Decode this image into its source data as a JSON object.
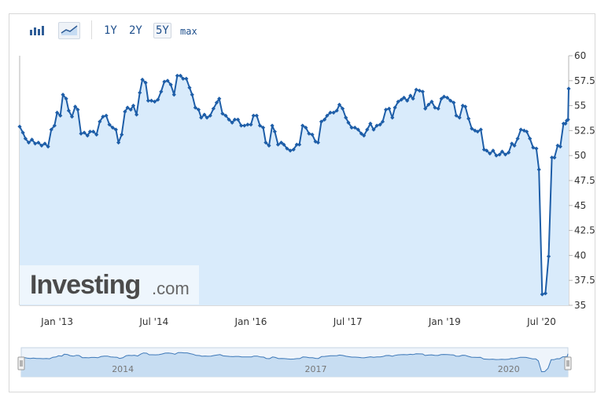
{
  "toolbar": {
    "chart_types": [
      {
        "name": "bar-chart",
        "icon": "bar-chart-icon"
      },
      {
        "name": "line-chart",
        "icon": "line-chart-icon",
        "active": true
      }
    ],
    "ranges": [
      "1Y",
      "2Y",
      "5Y",
      "max"
    ],
    "active_range": "5Y"
  },
  "watermark": {
    "brand": "Investing",
    "tld": ".com"
  },
  "colors": {
    "line": "#1e5ea8",
    "fill": "#d9ebfb",
    "marker": "#1e5ea8",
    "axis": "#b5b5b5"
  },
  "chart_data": {
    "type": "area",
    "y_axis_position": "right",
    "ylim": [
      35,
      60
    ],
    "yticks": [
      "60",
      "57.5",
      "55",
      "52.5",
      "50",
      "47.5",
      "45",
      "42.5",
      "40",
      "37.5",
      "35"
    ],
    "xlim": [
      2012.42,
      2020.92
    ],
    "xticks": [
      {
        "label": "Jan '13",
        "x": 2013.0
      },
      {
        "label": "Jul '14",
        "x": 2014.5
      },
      {
        "label": "Jan '16",
        "x": 2016.0
      },
      {
        "label": "Jul '17",
        "x": 2017.5
      },
      {
        "label": "Jan '19",
        "x": 2019.0
      },
      {
        "label": "Jul '20",
        "x": 2020.5
      }
    ],
    "navigator_ticks": [
      {
        "label": "2014",
        "x": 2014.0
      },
      {
        "label": "2017",
        "x": 2017.0
      },
      {
        "label": "2020",
        "x": 2020.0
      }
    ],
    "series": [
      {
        "points": [
          [
            2012.42,
            52.9
          ],
          [
            2012.47,
            52.3
          ],
          [
            2012.51,
            51.7
          ],
          [
            2012.56,
            51.3
          ],
          [
            2012.61,
            51.6
          ],
          [
            2012.66,
            51.2
          ],
          [
            2012.71,
            51.3
          ],
          [
            2012.76,
            51.0
          ],
          [
            2012.81,
            51.2
          ],
          [
            2012.86,
            50.9
          ],
          [
            2012.91,
            52.6
          ],
          [
            2012.96,
            53.0
          ],
          [
            2013.0,
            54.3
          ],
          [
            2013.05,
            54.0
          ],
          [
            2013.09,
            56.1
          ],
          [
            2013.14,
            55.7
          ],
          [
            2013.18,
            54.5
          ],
          [
            2013.23,
            53.9
          ],
          [
            2013.28,
            54.9
          ],
          [
            2013.32,
            54.6
          ],
          [
            2013.37,
            52.2
          ],
          [
            2013.42,
            52.3
          ],
          [
            2013.47,
            52.0
          ],
          [
            2013.51,
            52.4
          ],
          [
            2013.56,
            52.4
          ],
          [
            2013.61,
            52.1
          ],
          [
            2013.66,
            53.4
          ],
          [
            2013.71,
            53.9
          ],
          [
            2013.76,
            54.0
          ],
          [
            2013.81,
            53.1
          ],
          [
            2013.86,
            52.8
          ],
          [
            2013.91,
            52.6
          ],
          [
            2013.95,
            51.3
          ],
          [
            2014.0,
            52.1
          ],
          [
            2014.05,
            54.4
          ],
          [
            2014.09,
            54.8
          ],
          [
            2014.14,
            54.6
          ],
          [
            2014.18,
            55.0
          ],
          [
            2014.23,
            54.1
          ],
          [
            2014.28,
            56.3
          ],
          [
            2014.32,
            57.6
          ],
          [
            2014.37,
            57.3
          ],
          [
            2014.41,
            55.5
          ],
          [
            2014.46,
            55.5
          ],
          [
            2014.51,
            55.4
          ],
          [
            2014.56,
            55.6
          ],
          [
            2014.61,
            56.4
          ],
          [
            2014.66,
            57.4
          ],
          [
            2014.71,
            57.5
          ],
          [
            2014.76,
            57.1
          ],
          [
            2014.81,
            56.1
          ],
          [
            2014.86,
            58.0
          ],
          [
            2014.91,
            58.0
          ],
          [
            2014.95,
            57.7
          ],
          [
            2015.0,
            57.7
          ],
          [
            2015.05,
            56.8
          ],
          [
            2015.09,
            56.1
          ],
          [
            2015.14,
            54.8
          ],
          [
            2015.19,
            54.6
          ],
          [
            2015.23,
            53.8
          ],
          [
            2015.28,
            54.1
          ],
          [
            2015.32,
            53.8
          ],
          [
            2015.37,
            54.0
          ],
          [
            2015.42,
            54.7
          ],
          [
            2015.47,
            55.3
          ],
          [
            2015.51,
            55.7
          ],
          [
            2015.56,
            54.2
          ],
          [
            2015.61,
            54.0
          ],
          [
            2015.66,
            53.6
          ],
          [
            2015.71,
            53.3
          ],
          [
            2015.75,
            53.6
          ],
          [
            2015.8,
            53.6
          ],
          [
            2015.85,
            53.0
          ],
          [
            2015.9,
            53.0
          ],
          [
            2015.95,
            53.1
          ],
          [
            2016.0,
            53.1
          ],
          [
            2016.04,
            54.0
          ],
          [
            2016.09,
            54.0
          ],
          [
            2016.14,
            53.0
          ],
          [
            2016.19,
            52.8
          ],
          [
            2016.23,
            51.3
          ],
          [
            2016.28,
            51.0
          ],
          [
            2016.33,
            53.0
          ],
          [
            2016.37,
            52.4
          ],
          [
            2016.42,
            51.1
          ],
          [
            2016.47,
            51.3
          ],
          [
            2016.51,
            51.1
          ],
          [
            2016.56,
            50.7
          ],
          [
            2016.61,
            50.5
          ],
          [
            2016.66,
            50.6
          ],
          [
            2016.71,
            51.1
          ],
          [
            2016.75,
            51.1
          ],
          [
            2016.8,
            53.0
          ],
          [
            2016.85,
            52.8
          ],
          [
            2016.9,
            52.2
          ],
          [
            2016.95,
            52.1
          ],
          [
            2017.0,
            51.4
          ],
          [
            2017.04,
            51.3
          ],
          [
            2017.09,
            53.4
          ],
          [
            2017.14,
            53.6
          ],
          [
            2017.18,
            54.0
          ],
          [
            2017.23,
            54.3
          ],
          [
            2017.28,
            54.3
          ],
          [
            2017.33,
            54.5
          ],
          [
            2017.37,
            55.1
          ],
          [
            2017.42,
            54.7
          ],
          [
            2017.47,
            53.8
          ],
          [
            2017.51,
            53.3
          ],
          [
            2017.56,
            52.8
          ],
          [
            2017.61,
            52.8
          ],
          [
            2017.66,
            52.6
          ],
          [
            2017.71,
            52.2
          ],
          [
            2017.75,
            52.0
          ],
          [
            2017.8,
            52.6
          ],
          [
            2017.85,
            53.2
          ],
          [
            2017.9,
            52.6
          ],
          [
            2017.95,
            53.0
          ],
          [
            2018.0,
            53.1
          ],
          [
            2018.04,
            53.4
          ],
          [
            2018.09,
            54.6
          ],
          [
            2018.14,
            54.7
          ],
          [
            2018.19,
            53.8
          ],
          [
            2018.23,
            54.8
          ],
          [
            2018.28,
            55.4
          ],
          [
            2018.33,
            55.6
          ],
          [
            2018.37,
            55.8
          ],
          [
            2018.42,
            55.5
          ],
          [
            2018.47,
            56.0
          ],
          [
            2018.51,
            55.7
          ],
          [
            2018.56,
            56.6
          ],
          [
            2018.61,
            56.5
          ],
          [
            2018.66,
            56.4
          ],
          [
            2018.7,
            54.7
          ],
          [
            2018.75,
            55.1
          ],
          [
            2018.8,
            55.4
          ],
          [
            2018.85,
            54.8
          ],
          [
            2018.9,
            54.7
          ],
          [
            2018.95,
            55.7
          ],
          [
            2018.99,
            55.9
          ],
          [
            2019.04,
            55.8
          ],
          [
            2019.09,
            55.5
          ],
          [
            2019.14,
            55.3
          ],
          [
            2019.18,
            54.0
          ],
          [
            2019.23,
            53.8
          ],
          [
            2019.28,
            55.0
          ],
          [
            2019.32,
            54.9
          ],
          [
            2019.37,
            53.7
          ],
          [
            2019.42,
            52.7
          ],
          [
            2019.47,
            52.5
          ],
          [
            2019.51,
            52.4
          ],
          [
            2019.56,
            52.6
          ],
          [
            2019.61,
            50.6
          ],
          [
            2019.65,
            50.5
          ],
          [
            2019.7,
            50.2
          ],
          [
            2019.75,
            50.5
          ],
          [
            2019.8,
            50.0
          ],
          [
            2019.85,
            50.1
          ],
          [
            2019.89,
            50.4
          ],
          [
            2019.94,
            50.1
          ],
          [
            2019.99,
            50.3
          ],
          [
            2020.04,
            51.2
          ],
          [
            2020.08,
            51.0
          ],
          [
            2020.13,
            51.7
          ],
          [
            2020.18,
            52.6
          ],
          [
            2020.23,
            52.5
          ],
          [
            2020.27,
            52.4
          ],
          [
            2020.32,
            51.7
          ],
          [
            2020.37,
            50.8
          ],
          [
            2020.42,
            50.7
          ],
          [
            2020.46,
            48.6
          ],
          [
            2020.51,
            36.1
          ],
          [
            2020.56,
            36.2
          ],
          [
            2020.61,
            39.9
          ],
          [
            2020.66,
            49.8
          ],
          [
            2020.7,
            49.8
          ],
          [
            2020.75,
            51.0
          ],
          [
            2020.79,
            50.9
          ],
          [
            2020.84,
            53.2
          ],
          [
            2020.87,
            53.2
          ],
          [
            2020.89,
            53.5
          ],
          [
            2020.91,
            53.6
          ],
          [
            2020.92,
            56.7
          ]
        ]
      }
    ]
  }
}
